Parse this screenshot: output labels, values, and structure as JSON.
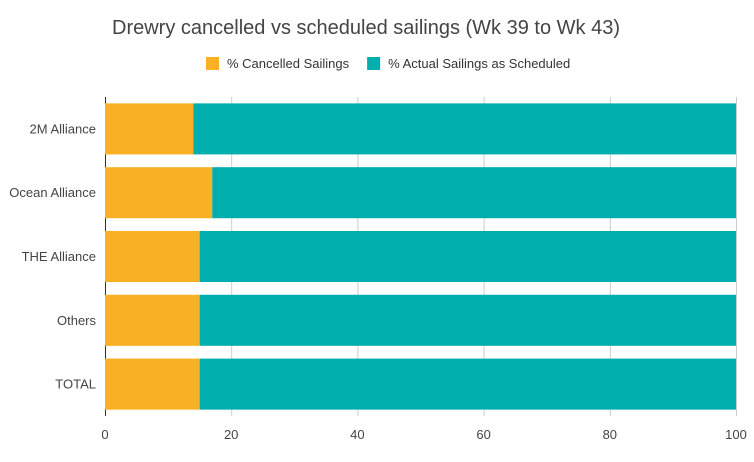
{
  "chart_data": {
    "type": "bar",
    "orientation": "horizontal",
    "stacked": true,
    "title": "Drewry cancelled vs scheduled sailings (Wk 39 to Wk 43)",
    "categories": [
      "2M Alliance",
      "Ocean Alliance",
      "THE Alliance",
      "Others",
      "TOTAL"
    ],
    "series": [
      {
        "name": "% Cancelled Sailings",
        "color": "#f9b022",
        "values": [
          14,
          17,
          15,
          15,
          15
        ]
      },
      {
        "name": "% Actual Sailings as Scheduled",
        "color": "#00afad",
        "values": [
          86,
          83,
          85,
          85,
          85
        ]
      }
    ],
    "xlim": [
      0,
      100
    ],
    "xticks": [
      0,
      20,
      40,
      60,
      80,
      100
    ],
    "grid": true,
    "legend_position": "top-center"
  }
}
